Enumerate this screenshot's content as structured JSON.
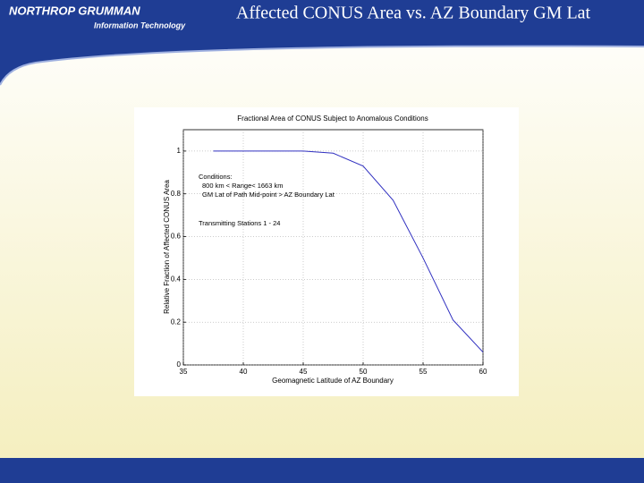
{
  "header": {
    "logo": "NORTHROP GRUMMAN",
    "logo_sub": "Information Technology",
    "title": "Affected CONUS Area vs. AZ Boundary GM Lat"
  },
  "chart_data": {
    "type": "line",
    "title": "Fractional Area of CONUS Subject to Anomalous Conditions",
    "xlabel": "Geomagnetic Latitude of AZ Boundary",
    "ylabel": "Relative Fraction of Affected CONUS Area",
    "annotations": [
      "Conditions:",
      "800 km < Range< 1663 km",
      "GM Lat of Path Mid-point > AZ Boundary Lat",
      "Transmitting Stations 1 - 24"
    ],
    "x": [
      37.5,
      40,
      42.5,
      45,
      47.5,
      50,
      52.5,
      55,
      57.5,
      60
    ],
    "series": [
      {
        "name": "Fraction",
        "color": "#3030c0",
        "values": [
          1,
          1,
          1,
          1,
          0.99,
          0.93,
          0.77,
          0.5,
          0.21,
          0.06
        ]
      }
    ],
    "xlim": [
      35,
      60
    ],
    "xticks": [
      35,
      40,
      45,
      50,
      55,
      60
    ],
    "ylim": [
      0,
      1.1
    ],
    "yticks": [
      0,
      0.2,
      0.4,
      0.6,
      0.8,
      1
    ],
    "grid": true
  }
}
